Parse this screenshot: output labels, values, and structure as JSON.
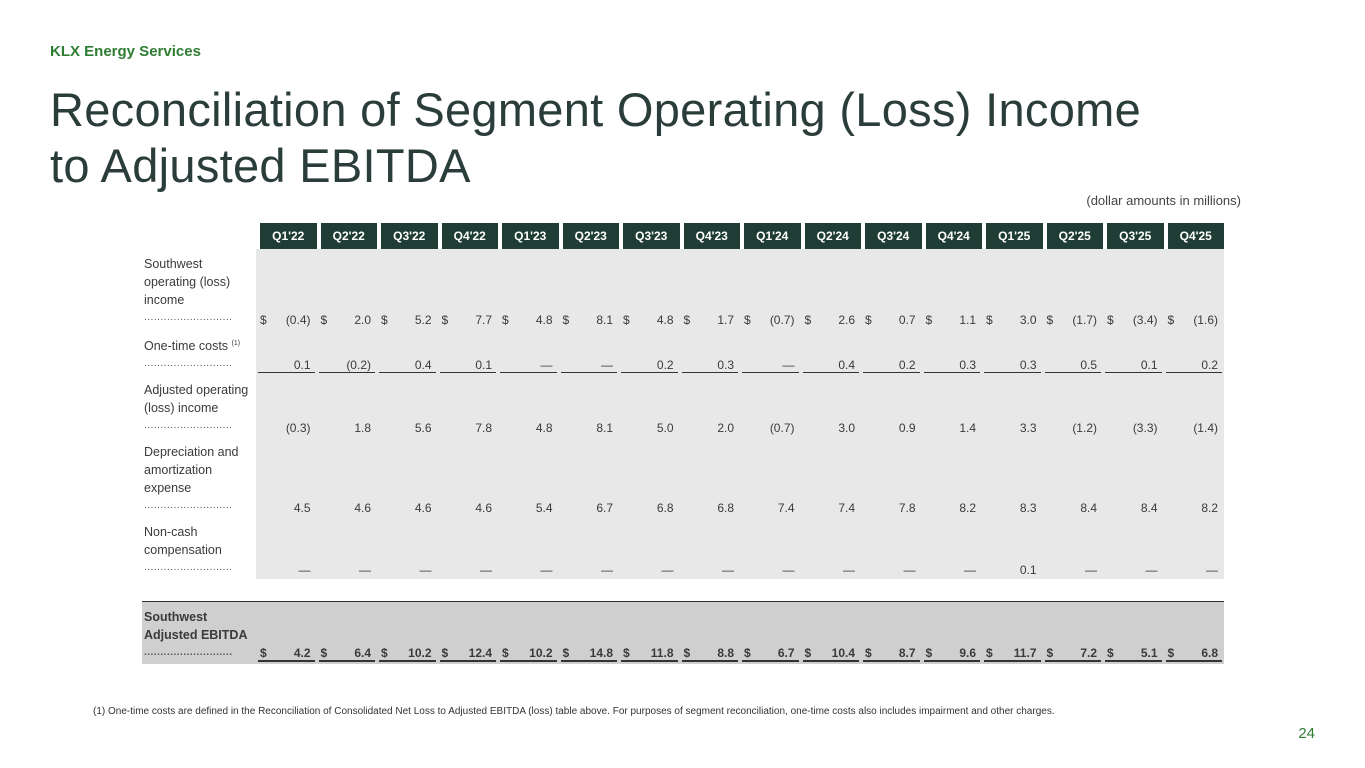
{
  "brand": "KLX Energy Services",
  "title_line1": "Reconciliation of Segment Operating (Loss) Income",
  "title_line2": "to Adjusted EBITDA",
  "units_note": "(dollar amounts in millions)",
  "table": {
    "columns": [
      "Q1'22",
      "Q2'22",
      "Q3'22",
      "Q4'22",
      "Q1'23",
      "Q2'23",
      "Q3'23",
      "Q4'23",
      "Q1'24",
      "Q2'24",
      "Q3'24",
      "Q4'24",
      "Q1'25",
      "Q2'25",
      "Q3'25",
      "Q4'25"
    ],
    "dots": "...........................",
    "rows": [
      {
        "label": "Southwest operating (loss) income",
        "dollar": true,
        "underline": false,
        "values": [
          "(0.4)",
          "2.0",
          "5.2",
          "7.7",
          "4.8",
          "8.1",
          "4.8",
          "1.7",
          "(0.7)",
          "2.6",
          "0.7",
          "1.1",
          "3.0",
          "(1.7)",
          "(3.4)",
          "(1.6)"
        ]
      },
      {
        "label": "One-time costs",
        "sup": "(1)",
        "dollar": false,
        "underline": true,
        "values": [
          "0.1",
          "(0.2)",
          "0.4",
          "0.1",
          "—",
          "—",
          "0.2",
          "0.3",
          "—",
          "0.4",
          "0.2",
          "0.3",
          "0.3",
          "0.5",
          "0.1",
          "0.2"
        ]
      },
      {
        "label": "Adjusted operating (loss) income",
        "dollar": false,
        "underline": false,
        "values": [
          "(0.3)",
          "1.8",
          "5.6",
          "7.8",
          "4.8",
          "8.1",
          "5.0",
          "2.0",
          "(0.7)",
          "3.0",
          "0.9",
          "1.4",
          "3.3",
          "(1.2)",
          "(3.3)",
          "(1.4)"
        ]
      },
      {
        "label": "Depreciation and amortization expense",
        "dollar": false,
        "underline": false,
        "values": [
          "4.5",
          "4.6",
          "4.6",
          "4.6",
          "5.4",
          "6.7",
          "6.8",
          "6.8",
          "7.4",
          "7.4",
          "7.8",
          "8.2",
          "8.3",
          "8.4",
          "8.4",
          "8.2"
        ]
      },
      {
        "label": "Non-cash compensation",
        "dollar": false,
        "underline": false,
        "values": [
          "—",
          "—",
          "—",
          "—",
          "—",
          "—",
          "—",
          "—",
          "—",
          "—",
          "—",
          "—",
          "0.1",
          "—",
          "—",
          "—"
        ]
      }
    ],
    "total": {
      "label": "Southwest Adjusted EBITDA",
      "dollar": true,
      "values": [
        "4.2",
        "6.4",
        "10.2",
        "12.4",
        "10.2",
        "14.8",
        "11.8",
        "8.8",
        "6.7",
        "10.4",
        "8.7",
        "9.6",
        "11.7",
        "7.2",
        "5.1",
        "6.8"
      ]
    },
    "currency_symbol": "$"
  },
  "footnote": "(1) One-time costs are defined in the Reconciliation of Consolidated Net Loss to Adjusted EBITDA (loss) table above. For purposes of segment reconciliation, one-time costs also includes impairment and other charges.",
  "page_number": "24"
}
